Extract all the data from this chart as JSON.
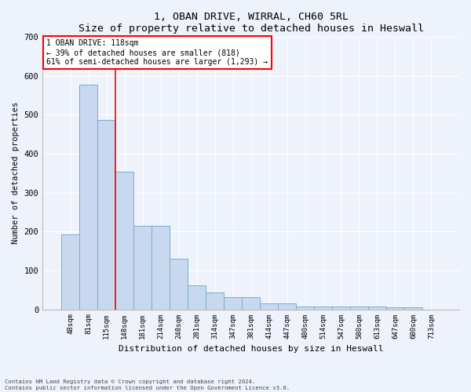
{
  "title1": "1, OBAN DRIVE, WIRRAL, CH60 5RL",
  "title2": "Size of property relative to detached houses in Heswall",
  "xlabel": "Distribution of detached houses by size in Heswall",
  "ylabel": "Number of detached properties",
  "categories": [
    "48sqm",
    "81sqm",
    "115sqm",
    "148sqm",
    "181sqm",
    "214sqm",
    "248sqm",
    "281sqm",
    "314sqm",
    "347sqm",
    "381sqm",
    "414sqm",
    "447sqm",
    "480sqm",
    "514sqm",
    "547sqm",
    "580sqm",
    "613sqm",
    "647sqm",
    "680sqm",
    "713sqm"
  ],
  "values": [
    192,
    578,
    487,
    354,
    214,
    214,
    131,
    62,
    44,
    31,
    31,
    15,
    15,
    8,
    8,
    8,
    8,
    8,
    6,
    6,
    0
  ],
  "bar_color": "#c8d9ef",
  "bar_edge_color": "#7aabcf",
  "red_line_x": 2.5,
  "annotation_line1": "1 OBAN DRIVE: 118sqm",
  "annotation_line2": "← 39% of detached houses are smaller (818)",
  "annotation_line3": "61% of semi-detached houses are larger (1,293) →",
  "ylim": [
    0,
    700
  ],
  "yticks": [
    0,
    100,
    200,
    300,
    400,
    500,
    600,
    700
  ],
  "footnote1": "Contains HM Land Registry data © Crown copyright and database right 2024.",
  "footnote2": "Contains public sector information licensed under the Open Government Licence v3.0.",
  "background_color": "#eef2fa",
  "plot_background": "#eef2fa"
}
